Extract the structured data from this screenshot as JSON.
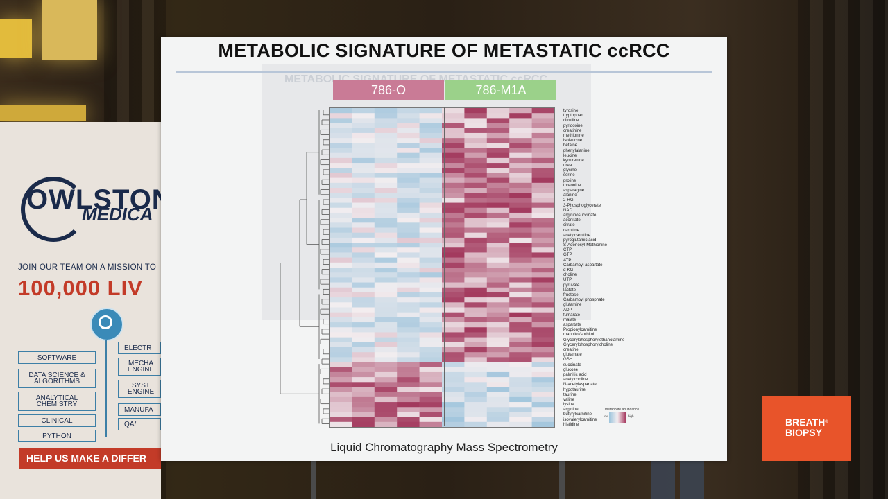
{
  "slide": {
    "title": "METABOLIC SIGNATURE OF METASTATIC ccRCC",
    "ghost_title": "METABOLIC SIGNATURE OF METASTATIC ccRCC",
    "groups": [
      "786-O",
      "786-M1A"
    ],
    "metabolites": [
      "tyrosine",
      "tryptophan",
      "citrulline",
      "pyridoxine",
      "creatinine",
      "methionine",
      "isoleucine",
      "betaine",
      "phenylalanine",
      "leucine",
      "kynurenine",
      "urea",
      "glycine",
      "serine",
      "proline",
      "threonine",
      "asparagine",
      "alanine",
      "2-HG",
      "3-Phosphoglycerate",
      "NAD",
      "argininosuccinate",
      "aconitate",
      "citrate",
      "carnitine",
      "acetylcarnitine",
      "pyroglutamic acid",
      "S-Adenosyl-Methionine",
      "CTP",
      "GTP",
      "ATP",
      "Carbamoyl aspartate",
      "α-KG",
      "choline",
      "UTP",
      "pyruvate",
      "lactate",
      "fructose",
      "Carbamoyl phosphate",
      "glutamine",
      "ADP",
      "fumarate",
      "malate",
      "aspartate",
      "Propionylcarnitine",
      "mannitol/sorbitol",
      "Glycerylphosphorylethanolamine",
      "Glycerylphosphorylcholine",
      "creatine",
      "glutamate",
      "GSH",
      "succinate",
      "glucose",
      "palmitic acid",
      "acetylcholine",
      "N-acetylaspartate",
      "hypotaurine",
      "taurine",
      "valine",
      "lysine",
      "arginine",
      "butyrylcarnitine",
      "isovalerylcarnitine",
      "histidine"
    ],
    "legend_title": "metabolite abundance",
    "legend_low": "low",
    "legend_high": "high",
    "subtitle": "Liquid Chromatography Mass Spectrometry"
  },
  "banner": {
    "logo_line1": "OWLSTON",
    "logo_line2": "MEDICA",
    "mission": "JOIN OUR TEAM ON A MISSION TO",
    "big_number": "100,000 LIV",
    "skills_left": [
      "SOFTWARE",
      "DATA SCIENCE & ALGORITHMS",
      "ANALYTICAL CHEMISTRY",
      "CLINICAL",
      "PYTHON"
    ],
    "skills_right": [
      "ELECTR",
      "MECHA ENGINE",
      "SYST ENGINE",
      "MANUFA",
      "QA/"
    ],
    "help": "HELP US MAKE A DIFFER"
  },
  "sponsor": {
    "line1": "BREATH",
    "line2": "BIOPSY",
    "mark": "®"
  },
  "colors": {
    "high": "#9e2f55",
    "low": "#8fbcd8",
    "group1": "#c97b96",
    "group2": "#9bd18a",
    "sponsor": "#e8542a"
  }
}
